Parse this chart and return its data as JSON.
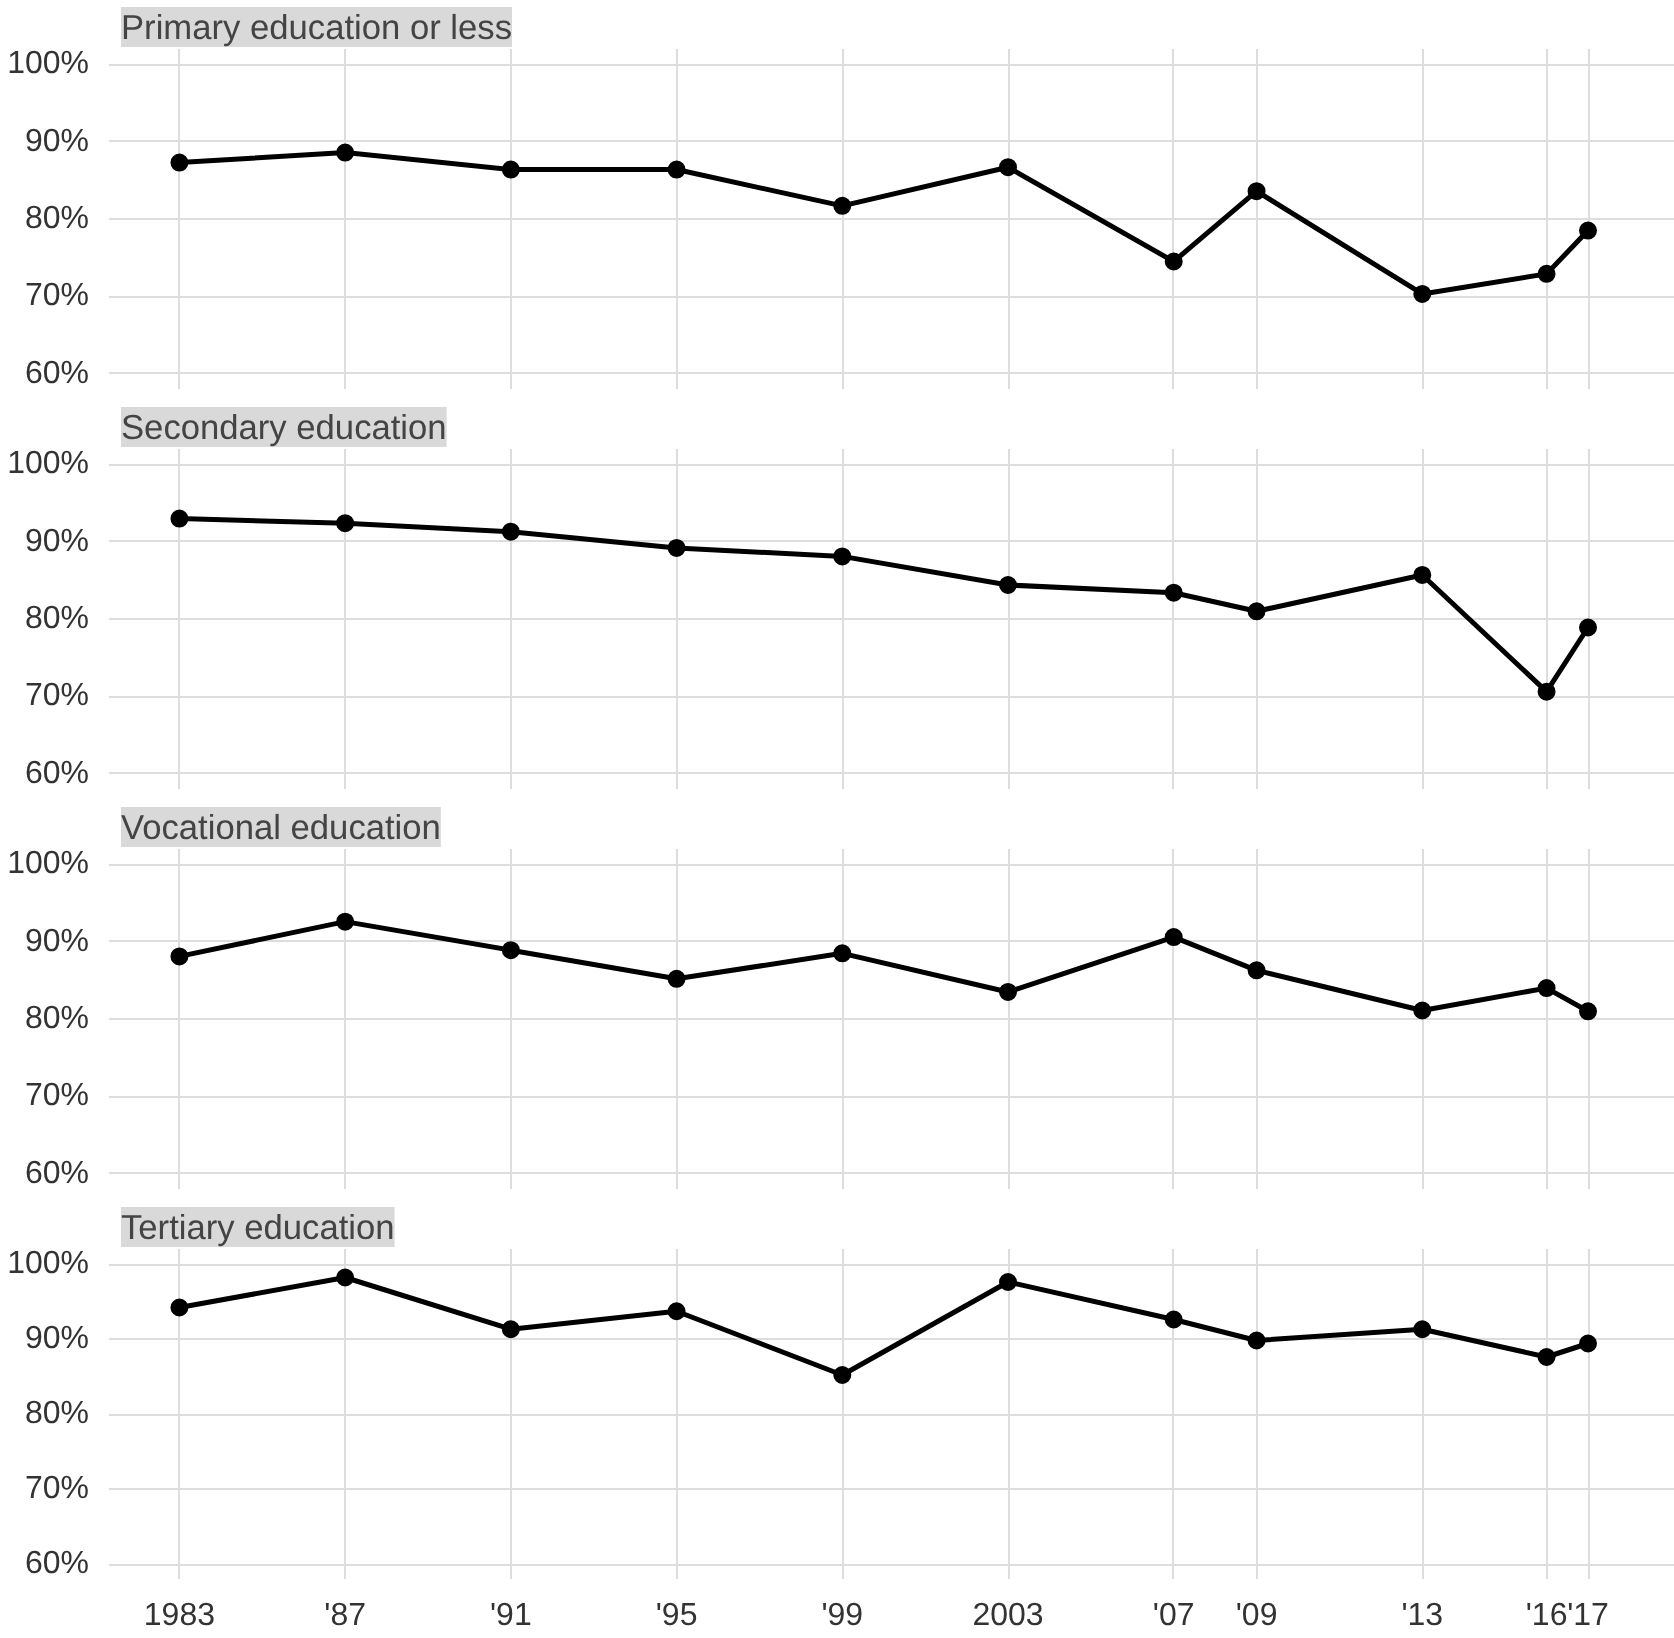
{
  "chart_data": [
    {
      "type": "line",
      "title": "Primary education or less",
      "x": [
        1983,
        1987,
        1991,
        1995,
        1999,
        2003,
        2007,
        2009,
        2013,
        2016,
        2017
      ],
      "series": [
        {
          "color": "#000000",
          "values": [
            87.3,
            88.6,
            86.4,
            86.4,
            81.7,
            86.7,
            74.5,
            83.6,
            70.3,
            72.9,
            78.5
          ]
        }
      ],
      "marker": "circle",
      "line_style": "solid",
      "grid": true,
      "tick_labels": "y",
      "xlim": [
        1981.3,
        2019.1
      ],
      "ylim": [
        58,
        102
      ],
      "xticks": [
        1983,
        1987,
        1991,
        1995,
        1999,
        2003,
        2007,
        2009,
        2013,
        2016,
        2017
      ],
      "yticks": [
        {
          "value": 60,
          "label": "60%"
        },
        {
          "value": 70,
          "label": "70%"
        },
        {
          "value": 80,
          "label": "80%"
        },
        {
          "value": 90,
          "label": "90%"
        },
        {
          "value": 100,
          "label": "100%"
        }
      ]
    },
    {
      "type": "line",
      "title": "Secondary education",
      "x": [
        1983,
        1987,
        1991,
        1995,
        1999,
        2003,
        2007,
        2009,
        2013,
        2016,
        2017
      ],
      "series": [
        {
          "color": "#000000",
          "values": [
            93.0,
            92.4,
            91.3,
            89.2,
            88.1,
            84.4,
            83.4,
            81.0,
            85.7,
            70.6,
            78.9
          ]
        }
      ],
      "marker": "circle",
      "line_style": "solid",
      "grid": true,
      "tick_labels": "y",
      "xlim": [
        1981.3,
        2019.1
      ],
      "ylim": [
        58,
        102
      ],
      "xticks": [
        1983,
        1987,
        1991,
        1995,
        1999,
        2003,
        2007,
        2009,
        2013,
        2016,
        2017
      ],
      "yticks": [
        {
          "value": 60,
          "label": "60%"
        },
        {
          "value": 70,
          "label": "70%"
        },
        {
          "value": 80,
          "label": "80%"
        },
        {
          "value": 90,
          "label": "90%"
        },
        {
          "value": 100,
          "label": "100%"
        }
      ]
    },
    {
      "type": "line",
      "title": "Vocational education",
      "x": [
        1983,
        1987,
        1991,
        1995,
        1999,
        2003,
        2007,
        2009,
        2013,
        2016,
        2017
      ],
      "series": [
        {
          "color": "#000000",
          "values": [
            88.1,
            92.6,
            88.9,
            85.2,
            88.5,
            83.5,
            90.6,
            86.3,
            81.1,
            84.0,
            81.0
          ]
        }
      ],
      "marker": "circle",
      "line_style": "solid",
      "grid": true,
      "tick_labels": "y",
      "xlim": [
        1981.3,
        2019.1
      ],
      "ylim": [
        58,
        102
      ],
      "xticks": [
        1983,
        1987,
        1991,
        1995,
        1999,
        2003,
        2007,
        2009,
        2013,
        2016,
        2017
      ],
      "yticks": [
        {
          "value": 60,
          "label": "60%"
        },
        {
          "value": 70,
          "label": "70%"
        },
        {
          "value": 80,
          "label": "80%"
        },
        {
          "value": 90,
          "label": "90%"
        },
        {
          "value": 100,
          "label": "100%"
        }
      ]
    },
    {
      "type": "line",
      "title": "Tertiary education",
      "x": [
        1983,
        1987,
        1991,
        1995,
        1999,
        2003,
        2007,
        2009,
        2013,
        2016,
        2017
      ],
      "series": [
        {
          "color": "#000000",
          "values": [
            94.2,
            98.2,
            91.3,
            93.7,
            85.2,
            97.6,
            92.6,
            89.8,
            91.3,
            87.6,
            89.4
          ]
        }
      ],
      "marker": "circle",
      "line_style": "solid",
      "grid": true,
      "xlim": [
        1981.3,
        2019.1
      ],
      "ylim": [
        58,
        102
      ],
      "xticks": [
        1983,
        {
          "value": 1987,
          "label": "'87"
        },
        {
          "value": 1991,
          "label": "'91"
        },
        {
          "value": 1995,
          "label": "'95"
        },
        {
          "value": 1999,
          "label": "'99"
        },
        2003,
        {
          "value": 2007,
          "label": "'07"
        },
        {
          "value": 2009,
          "label": "'09"
        },
        {
          "value": 2013,
          "label": "'13"
        },
        {
          "value": 2016,
          "label": "'16"
        },
        {
          "value": 2017,
          "label": "'17"
        }
      ],
      "yticks": [
        {
          "value": 60,
          "label": "60%"
        },
        {
          "value": 70,
          "label": "70%"
        },
        {
          "value": 80,
          "label": "80%"
        },
        {
          "value": 90,
          "label": "90%"
        },
        {
          "value": 100,
          "label": "100%"
        }
      ]
    }
  ]
}
